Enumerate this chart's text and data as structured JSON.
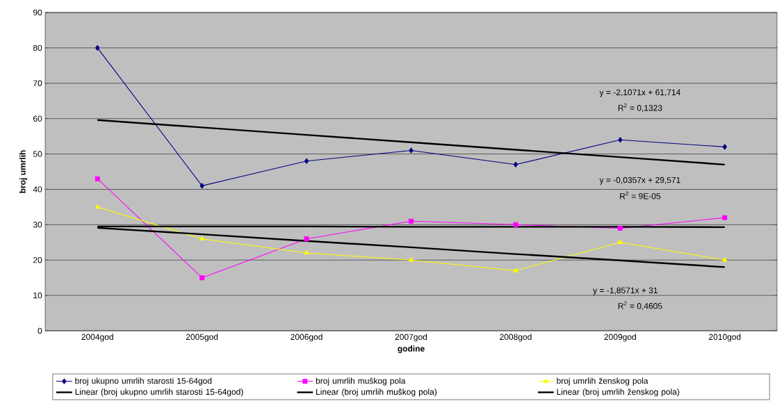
{
  "chart_data": {
    "type": "line",
    "xlabel": "godine",
    "ylabel": "broj umrlih",
    "categories": [
      "2004god",
      "2005god",
      "2006god",
      "2007god",
      "2008god",
      "2009god",
      "2010god"
    ],
    "ylim": [
      0,
      90
    ],
    "yticks": [
      0,
      10,
      20,
      30,
      40,
      50,
      60,
      70,
      80,
      90
    ],
    "grid": "y",
    "legend": "bottom",
    "series": [
      {
        "name": "broj ukupno umrlih starosti 15-64god",
        "color": "#000080",
        "marker": "diamond",
        "values": [
          80,
          41,
          48,
          51,
          47,
          54,
          52
        ]
      },
      {
        "name": "broj umrlih muškog pola",
        "color": "#ff00ff",
        "marker": "square",
        "values": [
          43,
          15,
          26,
          31,
          30,
          29,
          32
        ]
      },
      {
        "name": "broj umrlih ženskog pola",
        "color": "#ffff00",
        "marker": "triangle",
        "values": [
          35,
          26,
          22,
          20,
          17,
          25,
          20
        ]
      },
      {
        "name": "Linear (broj ukupno umrlih starosti 15-64god)",
        "color": "#000000",
        "marker": "none",
        "values": [
          59.6,
          57.5,
          55.4,
          53.3,
          51.2,
          49.1,
          47.0
        ]
      },
      {
        "name": "Linear (broj umrlih muškog pola)",
        "color": "#000000",
        "marker": "none",
        "values": [
          29.5,
          29.5,
          29.5,
          29.4,
          29.4,
          29.4,
          29.3
        ]
      },
      {
        "name": "Linear (broj umrlih ženskog pola)",
        "color": "#000000",
        "marker": "none",
        "values": [
          29.1,
          27.3,
          25.4,
          23.6,
          21.7,
          19.9,
          18.0
        ]
      }
    ],
    "annotations": [
      "y = -2,1071x + 61,714",
      "R$^{2}$ = 0,1323",
      "y = -0,0357x + 29,571",
      "R$^{2}$ = 9E-05",
      "y = -1,8571x + 31",
      "R$^{2}$ = 0,4605"
    ]
  }
}
